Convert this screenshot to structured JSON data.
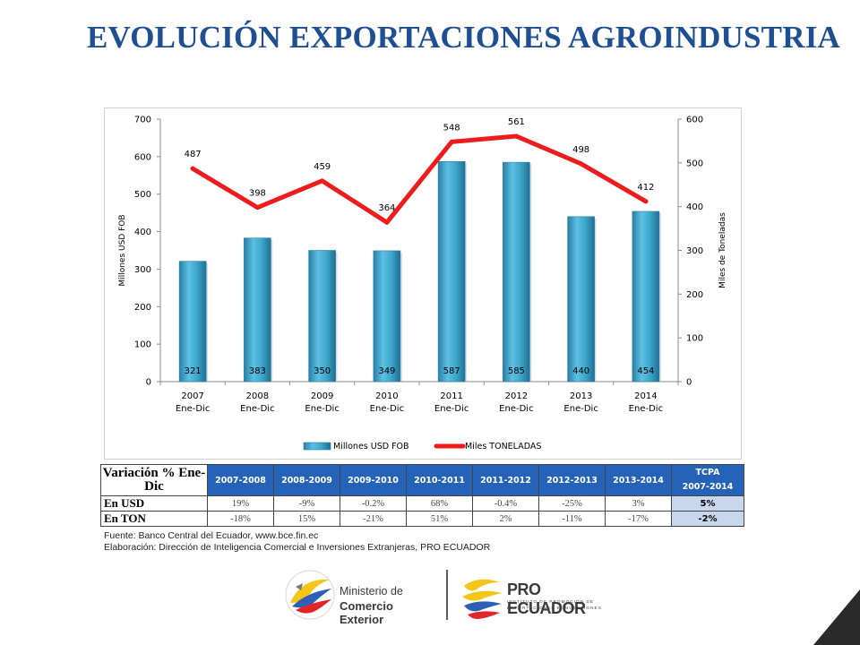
{
  "title": "EVOLUCIÓN EXPORTACIONES AGROINDUSTRIA",
  "chart_data": {
    "type": "bar",
    "categories": [
      [
        "2007",
        "Ene-Dic"
      ],
      [
        "2008",
        "Ene-Dic"
      ],
      [
        "2009",
        "Ene-Dic"
      ],
      [
        "2010",
        "Ene-Dic"
      ],
      [
        "2011",
        "Ene-Dic"
      ],
      [
        "2012",
        "Ene-Dic"
      ],
      [
        "2013",
        "Ene-Dic"
      ],
      [
        "2014",
        "Ene-Dic"
      ]
    ],
    "series": [
      {
        "name": "Millones USD FOB",
        "type": "bar",
        "axis": "left",
        "values": [
          321,
          383,
          350,
          349,
          587,
          585,
          440,
          454
        ],
        "labels": [
          "321",
          "383",
          "350",
          "349",
          "587",
          "585",
          "440",
          "454"
        ],
        "color": "#3b9ec2"
      },
      {
        "name": "Miles TONELADAS",
        "type": "line",
        "axis": "right",
        "values": [
          487,
          398,
          459,
          364,
          548,
          561,
          498,
          412
        ],
        "labels": [
          "487",
          "398",
          "459",
          "364",
          "548",
          "561",
          "498",
          "412"
        ],
        "color": "#ee1c1c"
      }
    ],
    "ylabel": "Millones USD FOB",
    "y2label": "Miles de Toneladas",
    "ylim": [
      0,
      700
    ],
    "y2lim": [
      0,
      600
    ],
    "yticks": [
      "0",
      "100",
      "200",
      "300",
      "400",
      "500",
      "600",
      "700"
    ],
    "y2ticks": [
      "0",
      "100",
      "200",
      "300",
      "400",
      "500",
      "600"
    ],
    "grid": false,
    "legend_position": "bottom"
  },
  "table": {
    "header_label": "Variación % Ene-Dic",
    "periods": [
      "2007-2008",
      "2008-2009",
      "2009-2010",
      "2010-2011",
      "2011-2012",
      "2012-2013",
      "2013-2014"
    ],
    "tcpa_label": "TCPA",
    "tcpa_period": "2007-2014",
    "rows": [
      {
        "label": "En USD",
        "values": [
          "19%",
          "-9%",
          "-0.2%",
          "68%",
          "-0.4%",
          "-25%",
          "3%"
        ],
        "tcpa": "5%"
      },
      {
        "label": "En TON",
        "values": [
          "-18%",
          "15%",
          "-21%",
          "51%",
          "2%",
          "-11%",
          "-17%"
        ],
        "tcpa": "-2%"
      }
    ]
  },
  "source": {
    "line1": "Fuente: Banco Central del Ecuador, www.bce.fin.ec",
    "line2": "Elaboración: Dirección de Inteligencia Comercial e Inversiones Extranjeras, PRO ECUADOR"
  },
  "logos": {
    "ministerio_line1": "Ministerio de",
    "ministerio_line2": "Comercio Exterior",
    "proecuador_name": "PRO ECUADOR",
    "proecuador_sub1": "INSTITUTO DE PROMOCIÓN DE",
    "proecuador_sub2": "EXPORTACIONES E INVERSIONES"
  }
}
